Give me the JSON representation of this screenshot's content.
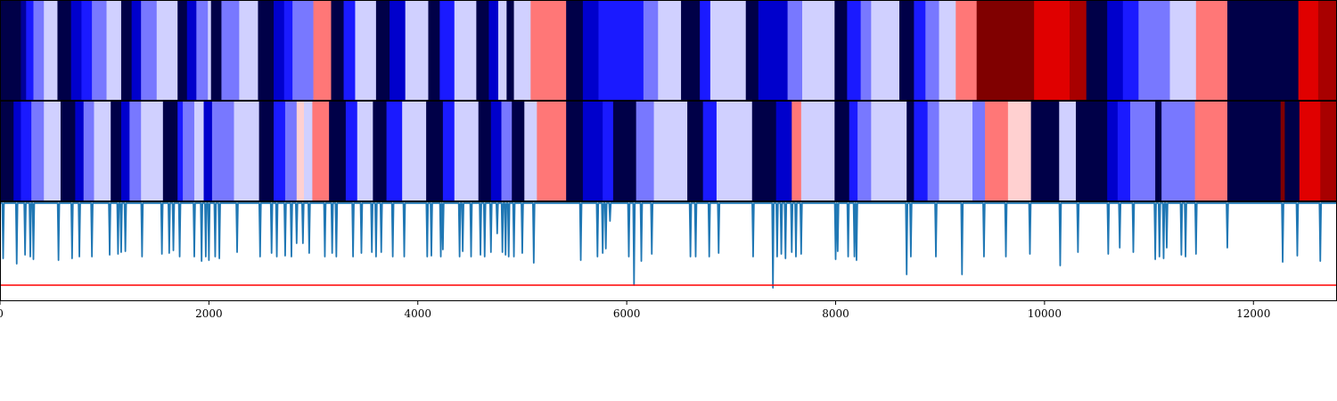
{
  "chart_data": [
    {
      "type": "heatmap",
      "panel": "top",
      "xlim": [
        0,
        12800
      ],
      "colormap": "bwr",
      "segments": [
        [
          0,
          200,
          "#000048"
        ],
        [
          200,
          250,
          "#00009a"
        ],
        [
          250,
          320,
          "#1a1aff"
        ],
        [
          320,
          420,
          "#7878ff"
        ],
        [
          420,
          550,
          "#d0d0ff"
        ],
        [
          550,
          680,
          "#000048"
        ],
        [
          680,
          780,
          "#0000cc"
        ],
        [
          780,
          880,
          "#1a1aff"
        ],
        [
          880,
          1020,
          "#7878ff"
        ],
        [
          1020,
          1160,
          "#d0d0ff"
        ],
        [
          1160,
          1260,
          "#000048"
        ],
        [
          1260,
          1350,
          "#0000cc"
        ],
        [
          1350,
          1500,
          "#7878ff"
        ],
        [
          1500,
          1700,
          "#d0d0ff"
        ],
        [
          1700,
          1790,
          "#000048"
        ],
        [
          1790,
          1880,
          "#0000cc"
        ],
        [
          1880,
          1990,
          "#7878ff"
        ],
        [
          1990,
          2020,
          "#d0d0ff"
        ],
        [
          2020,
          2120,
          "#000048"
        ],
        [
          2120,
          2290,
          "#7878ff"
        ],
        [
          2290,
          2470,
          "#d0d0ff"
        ],
        [
          2470,
          2620,
          "#000048"
        ],
        [
          2620,
          2720,
          "#0000cc"
        ],
        [
          2720,
          2800,
          "#1a1aff"
        ],
        [
          2800,
          3000,
          "#7878ff"
        ],
        [
          3000,
          3170,
          "#ff7777"
        ],
        [
          3170,
          3290,
          "#000048"
        ],
        [
          3290,
          3400,
          "#1a1aff"
        ],
        [
          3400,
          3600,
          "#d0d0ff"
        ],
        [
          3600,
          3730,
          "#000048"
        ],
        [
          3730,
          3880,
          "#0000cc"
        ],
        [
          3880,
          4100,
          "#d0d0ff"
        ],
        [
          4100,
          4210,
          "#000048"
        ],
        [
          4210,
          4350,
          "#1a1aff"
        ],
        [
          4350,
          4560,
          "#d0d0ff"
        ],
        [
          4560,
          4680,
          "#000048"
        ],
        [
          4680,
          4770,
          "#0000cc"
        ],
        [
          4770,
          4850,
          "#d0d0ff"
        ],
        [
          4850,
          4920,
          "#000048"
        ],
        [
          4920,
          5080,
          "#d0d0ff"
        ],
        [
          5080,
          5420,
          "#ff7777"
        ],
        [
          5420,
          5580,
          "#000048"
        ],
        [
          5580,
          5730,
          "#0000cc"
        ],
        [
          5730,
          6160,
          "#1a1aff"
        ],
        [
          6160,
          6300,
          "#7878ff"
        ],
        [
          6300,
          6520,
          "#d0d0ff"
        ],
        [
          6520,
          6700,
          "#000048"
        ],
        [
          6700,
          6800,
          "#1a1aff"
        ],
        [
          6800,
          7140,
          "#d0d0ff"
        ],
        [
          7140,
          7260,
          "#000048"
        ],
        [
          7260,
          7540,
          "#0000cc"
        ],
        [
          7540,
          7680,
          "#7878ff"
        ],
        [
          7680,
          7990,
          "#d0d0ff"
        ],
        [
          7990,
          8110,
          "#000048"
        ],
        [
          8110,
          8240,
          "#1a1aff"
        ],
        [
          8240,
          8340,
          "#7878ff"
        ],
        [
          8340,
          8610,
          "#d0d0ff"
        ],
        [
          8610,
          8750,
          "#000048"
        ],
        [
          8750,
          8860,
          "#1a1aff"
        ],
        [
          8860,
          8990,
          "#7878ff"
        ],
        [
          8990,
          9150,
          "#d0d0ff"
        ],
        [
          9150,
          9350,
          "#ff7777"
        ],
        [
          9350,
          9900,
          "#800000"
        ],
        [
          9900,
          10240,
          "#e00000"
        ],
        [
          10240,
          10400,
          "#a80000"
        ],
        [
          10400,
          10600,
          "#000048"
        ],
        [
          10600,
          10750,
          "#0000cc"
        ],
        [
          10750,
          10900,
          "#1a1aff"
        ],
        [
          10900,
          11200,
          "#7878ff"
        ],
        [
          11200,
          11450,
          "#d0d0ff"
        ],
        [
          11450,
          11750,
          "#ff7777"
        ],
        [
          11750,
          12430,
          "#000048"
        ],
        [
          12430,
          12620,
          "#e00000"
        ],
        [
          12620,
          12800,
          "#a80000"
        ]
      ]
    },
    {
      "type": "heatmap",
      "panel": "middle",
      "xlim": [
        0,
        12800
      ],
      "colormap": "bwr",
      "segments": [
        [
          0,
          130,
          "#000048"
        ],
        [
          130,
          200,
          "#0000cc"
        ],
        [
          200,
          300,
          "#1a1aff"
        ],
        [
          300,
          420,
          "#7878ff"
        ],
        [
          420,
          580,
          "#d0d0ff"
        ],
        [
          580,
          720,
          "#000048"
        ],
        [
          720,
          800,
          "#0000cc"
        ],
        [
          800,
          900,
          "#7878ff"
        ],
        [
          900,
          1060,
          "#d0d0ff"
        ],
        [
          1060,
          1160,
          "#000048"
        ],
        [
          1160,
          1240,
          "#0000cc"
        ],
        [
          1240,
          1350,
          "#7878ff"
        ],
        [
          1350,
          1560,
          "#d0d0ff"
        ],
        [
          1560,
          1700,
          "#000048"
        ],
        [
          1700,
          1750,
          "#1a1aff"
        ],
        [
          1750,
          1860,
          "#7878ff"
        ],
        [
          1860,
          1950,
          "#d0d0ff"
        ],
        [
          1950,
          2030,
          "#0000cc"
        ],
        [
          2030,
          2090,
          "#7878ff"
        ],
        [
          2090,
          2240,
          "#7878ff"
        ],
        [
          2240,
          2480,
          "#d0d0ff"
        ],
        [
          2480,
          2620,
          "#000048"
        ],
        [
          2620,
          2730,
          "#1a1aff"
        ],
        [
          2730,
          2840,
          "#7878ff"
        ],
        [
          2840,
          2910,
          "#ffd0d0"
        ],
        [
          2910,
          2990,
          "#d0d0ff"
        ],
        [
          2990,
          3150,
          "#ff7777"
        ],
        [
          3150,
          3310,
          "#000048"
        ],
        [
          3310,
          3420,
          "#1a1aff"
        ],
        [
          3420,
          3570,
          "#d0d0ff"
        ],
        [
          3570,
          3700,
          "#000048"
        ],
        [
          3700,
          3850,
          "#1a1aff"
        ],
        [
          3850,
          4080,
          "#d0d0ff"
        ],
        [
          4080,
          4240,
          "#000048"
        ],
        [
          4240,
          4350,
          "#1a1aff"
        ],
        [
          4350,
          4580,
          "#d0d0ff"
        ],
        [
          4580,
          4700,
          "#000048"
        ],
        [
          4700,
          4800,
          "#0000cc"
        ],
        [
          4800,
          4900,
          "#7878ff"
        ],
        [
          4900,
          5020,
          "#000048"
        ],
        [
          5020,
          5140,
          "#d0d0ff"
        ],
        [
          5140,
          5420,
          "#ff7777"
        ],
        [
          5420,
          5580,
          "#000048"
        ],
        [
          5580,
          5770,
          "#0000cc"
        ],
        [
          5770,
          5870,
          "#1a1aff"
        ],
        [
          5870,
          6090,
          "#000048"
        ],
        [
          6090,
          6260,
          "#7878ff"
        ],
        [
          6260,
          6580,
          "#d0d0ff"
        ],
        [
          6580,
          6730,
          "#000048"
        ],
        [
          6730,
          6860,
          "#1a1aff"
        ],
        [
          6860,
          7200,
          "#d0d0ff"
        ],
        [
          7200,
          7430,
          "#000048"
        ],
        [
          7430,
          7580,
          "#0000cc"
        ],
        [
          7580,
          7670,
          "#ff7777"
        ],
        [
          7670,
          7990,
          "#d0d0ff"
        ],
        [
          7990,
          8130,
          "#000048"
        ],
        [
          8130,
          8210,
          "#1a1aff"
        ],
        [
          8210,
          8340,
          "#7878ff"
        ],
        [
          8340,
          8680,
          "#d0d0ff"
        ],
        [
          8680,
          8750,
          "#000048"
        ],
        [
          8750,
          8880,
          "#1a1aff"
        ],
        [
          8880,
          8990,
          "#7878ff"
        ],
        [
          8990,
          9310,
          "#d0d0ff"
        ],
        [
          9310,
          9430,
          "#7878ff"
        ],
        [
          9430,
          9650,
          "#ff7777"
        ],
        [
          9650,
          9870,
          "#ffd0d0"
        ],
        [
          9870,
          10140,
          "#000048"
        ],
        [
          10140,
          10300,
          "#d0d0ff"
        ],
        [
          10300,
          10600,
          "#000048"
        ],
        [
          10600,
          10700,
          "#0000cc"
        ],
        [
          10700,
          10820,
          "#1a1aff"
        ],
        [
          10820,
          11060,
          "#7878ff"
        ],
        [
          11060,
          11120,
          "#000048"
        ],
        [
          11120,
          11440,
          "#7878ff"
        ],
        [
          11440,
          11750,
          "#ff7777"
        ],
        [
          11750,
          12260,
          "#000048"
        ],
        [
          12260,
          12300,
          "#800000"
        ],
        [
          12300,
          12440,
          "#000048"
        ],
        [
          12440,
          12640,
          "#e00000"
        ],
        [
          12640,
          12800,
          "#a80000"
        ]
      ]
    },
    {
      "type": "line",
      "panel": "bottom",
      "xlim": [
        0,
        12800
      ],
      "ylim": [
        -1.1,
        0.02
      ],
      "xticks": [
        "0",
        "2000",
        "4000",
        "6000",
        "8000",
        "10000",
        "12000"
      ],
      "xtick_values": [
        0,
        2000,
        4000,
        6000,
        8000,
        10000,
        12000
      ],
      "series_color": "#1f77b4",
      "baseline": 0,
      "dips": [
        [
          30,
          0.62
        ],
        [
          160,
          0.68
        ],
        [
          240,
          0.58
        ],
        [
          290,
          0.6
        ],
        [
          320,
          0.63
        ],
        [
          560,
          0.64
        ],
        [
          690,
          0.62
        ],
        [
          760,
          0.6
        ],
        [
          880,
          0.6
        ],
        [
          1050,
          0.58
        ],
        [
          1130,
          0.57
        ],
        [
          1160,
          0.55
        ],
        [
          1200,
          0.54
        ],
        [
          1360,
          0.6
        ],
        [
          1550,
          0.57
        ],
        [
          1620,
          0.56
        ],
        [
          1660,
          0.53
        ],
        [
          1720,
          0.6
        ],
        [
          1860,
          0.6
        ],
        [
          1930,
          0.65
        ],
        [
          1970,
          0.6
        ],
        [
          2000,
          0.64
        ],
        [
          2060,
          0.6
        ],
        [
          2100,
          0.62
        ],
        [
          2270,
          0.55
        ],
        [
          2490,
          0.6
        ],
        [
          2600,
          0.56
        ],
        [
          2650,
          0.6
        ],
        [
          2730,
          0.59
        ],
        [
          2790,
          0.6
        ],
        [
          2840,
          0.45
        ],
        [
          2900,
          0.45
        ],
        [
          2960,
          0.56
        ],
        [
          3110,
          0.6
        ],
        [
          3180,
          0.56
        ],
        [
          3220,
          0.6
        ],
        [
          3380,
          0.6
        ],
        [
          3460,
          0.56
        ],
        [
          3560,
          0.55
        ],
        [
          3600,
          0.6
        ],
        [
          3650,
          0.55
        ],
        [
          3760,
          0.6
        ],
        [
          3870,
          0.6
        ],
        [
          4090,
          0.6
        ],
        [
          4130,
          0.59
        ],
        [
          4220,
          0.6
        ],
        [
          4240,
          0.52
        ],
        [
          4400,
          0.6
        ],
        [
          4430,
          0.54
        ],
        [
          4510,
          0.6
        ],
        [
          4600,
          0.58
        ],
        [
          4640,
          0.6
        ],
        [
          4700,
          0.55
        ],
        [
          4760,
          0.34
        ],
        [
          4810,
          0.55
        ],
        [
          4840,
          0.58
        ],
        [
          4870,
          0.6
        ],
        [
          4920,
          0.6
        ],
        [
          5000,
          0.56
        ],
        [
          5110,
          0.67
        ],
        [
          5560,
          0.64
        ],
        [
          5720,
          0.6
        ],
        [
          5770,
          0.56
        ],
        [
          5800,
          0.51
        ],
        [
          5840,
          0.2
        ],
        [
          6020,
          0.6
        ],
        [
          6070,
          0.92
        ],
        [
          6140,
          0.65
        ],
        [
          6240,
          0.57
        ],
        [
          6610,
          0.6
        ],
        [
          6660,
          0.6
        ],
        [
          6790,
          0.6
        ],
        [
          6880,
          0.56
        ],
        [
          7210,
          0.6
        ],
        [
          7400,
          0.95
        ],
        [
          7440,
          0.6
        ],
        [
          7480,
          0.57
        ],
        [
          7520,
          0.62
        ],
        [
          7580,
          0.55
        ],
        [
          7620,
          0.6
        ],
        [
          7670,
          0.57
        ],
        [
          8000,
          0.63
        ],
        [
          8020,
          0.54
        ],
        [
          8120,
          0.6
        ],
        [
          8180,
          0.6
        ],
        [
          8200,
          0.64
        ],
        [
          8680,
          0.8
        ],
        [
          8720,
          0.6
        ],
        [
          8960,
          0.6
        ],
        [
          9210,
          0.8
        ],
        [
          9420,
          0.6
        ],
        [
          9630,
          0.6
        ],
        [
          9860,
          0.57
        ],
        [
          10150,
          0.7
        ],
        [
          10320,
          0.55
        ],
        [
          10610,
          0.57
        ],
        [
          10720,
          0.5
        ],
        [
          10850,
          0.55
        ],
        [
          11060,
          0.63
        ],
        [
          11100,
          0.6
        ],
        [
          11140,
          0.62
        ],
        [
          11170,
          0.5
        ],
        [
          11310,
          0.58
        ],
        [
          11350,
          0.6
        ],
        [
          11450,
          0.57
        ],
        [
          11750,
          0.5
        ],
        [
          12280,
          0.66
        ],
        [
          12420,
          0.59
        ],
        [
          12640,
          0.65
        ]
      ],
      "hline": {
        "y": -0.92,
        "color": "#ff0000"
      }
    }
  ]
}
